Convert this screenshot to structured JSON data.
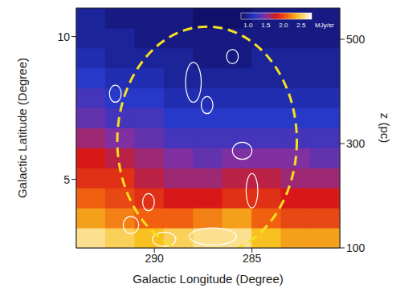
{
  "chart_data": {
    "type": "heatmap",
    "x_label": "Galactic Longitude (Degree)",
    "y_label": "Galactic Latitude (Degree)",
    "y2_label": "z (pc)",
    "xlim": [
      294,
      280.5
    ],
    "xticks": [
      290,
      285
    ],
    "ylim": [
      2.6,
      11
    ],
    "yticks": [
      5,
      10
    ],
    "y2lim": [
      100,
      560
    ],
    "y2ticks": [
      100,
      300,
      500
    ],
    "x_bins": [
      294,
      292.5,
      291,
      289.5,
      288,
      286.5,
      285,
      283.5,
      282,
      280.5
    ],
    "y_bins": [
      2.6,
      3.3,
      4.0,
      4.7,
      5.4,
      6.1,
      6.8,
      7.5,
      8.2,
      8.9,
      9.6,
      10.3,
      11.0
    ],
    "cells": [
      [
        2.6,
        2.5,
        2.4,
        2.5,
        2.6,
        2.6,
        2.4,
        2.3,
        2.3
      ],
      [
        2.3,
        2.2,
        2.1,
        2.1,
        2.2,
        2.3,
        2.1,
        2.0,
        2.0
      ],
      [
        2.1,
        2.0,
        1.9,
        1.8,
        1.8,
        1.9,
        1.9,
        1.8,
        1.8
      ],
      [
        1.9,
        1.9,
        1.7,
        1.6,
        1.6,
        1.7,
        1.7,
        1.6,
        1.6
      ],
      [
        1.8,
        1.7,
        1.6,
        1.5,
        1.4,
        1.5,
        1.5,
        1.5,
        1.4
      ],
      [
        1.6,
        1.5,
        1.4,
        1.3,
        1.3,
        1.3,
        1.3,
        1.3,
        1.3
      ],
      [
        1.4,
        1.3,
        1.3,
        1.2,
        1.2,
        1.2,
        1.2,
        1.2,
        1.2
      ],
      [
        1.3,
        1.2,
        1.2,
        1.1,
        1.1,
        1.1,
        1.1,
        1.1,
        1.1
      ],
      [
        1.2,
        1.1,
        1.1,
        1.0,
        1.0,
        1.0,
        1.0,
        1.0,
        1.0
      ],
      [
        1.1,
        1.0,
        1.0,
        1.0,
        0.9,
        0.9,
        1.0,
        1.0,
        1.0
      ],
      [
        1.0,
        1.0,
        0.9,
        0.9,
        0.9,
        0.9,
        0.9,
        0.9,
        0.9
      ],
      [
        1.0,
        0.9,
        0.9,
        0.9,
        0.8,
        0.8,
        0.9,
        0.9,
        0.9
      ]
    ],
    "colorbar": {
      "range": [
        0.8,
        2.8
      ],
      "ticks": [
        {
          "value": 1,
          "label": "1.0"
        },
        1.5,
        {
          "value": 2,
          "label": "2.0"
        },
        2.5
      ],
      "label": "MJy/sr"
    },
    "ellipse": {
      "center": [
        287.3,
        6.35
      ],
      "radius": [
        4.6,
        4.0
      ],
      "color": "#f5e020",
      "line_style": "dashed"
    },
    "contours": {
      "color": "#ffffff",
      "shapes": [
        {
          "center": [
            288.0,
            8.4
          ],
          "radius": [
            0.4,
            0.7
          ]
        },
        {
          "center": [
            287.3,
            7.6
          ],
          "radius": [
            0.3,
            0.3
          ]
        },
        {
          "center": [
            292.0,
            8.0
          ],
          "radius": [
            0.3,
            0.3
          ]
        },
        {
          "center": [
            285.5,
            6.0
          ],
          "radius": [
            0.5,
            0.3
          ]
        },
        {
          "center": [
            285.0,
            4.6
          ],
          "radius": [
            0.3,
            0.6
          ]
        },
        {
          "center": [
            290.3,
            4.2
          ],
          "radius": [
            0.3,
            0.3
          ]
        },
        {
          "center": [
            291.2,
            3.4
          ],
          "radius": [
            0.4,
            0.3
          ]
        },
        {
          "center": [
            287.0,
            3.0
          ],
          "radius": [
            1.2,
            0.3
          ]
        },
        {
          "center": [
            289.5,
            2.9
          ],
          "radius": [
            0.6,
            0.25
          ]
        },
        {
          "center": [
            286.0,
            9.3
          ],
          "radius": [
            0.3,
            0.25
          ]
        }
      ]
    }
  }
}
